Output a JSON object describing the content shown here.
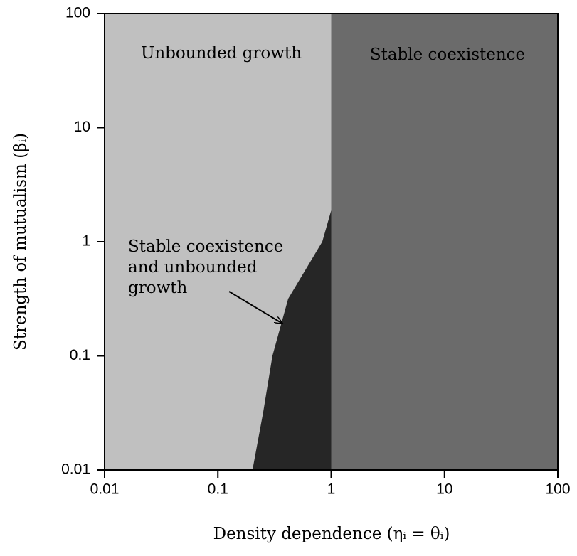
{
  "chart_data": {
    "type": "region",
    "xlabel": "Density dependence (ηᵢ = θᵢ)",
    "ylabel": "Strength of mutualism (βᵢ)",
    "xscale": "log",
    "yscale": "log",
    "xlim": [
      0.01,
      100
    ],
    "ylim": [
      0.01,
      100
    ],
    "xticks": [
      0.01,
      0.1,
      1,
      10,
      100
    ],
    "yticks": [
      0.01,
      0.1,
      1,
      10,
      100
    ],
    "background": {
      "label": "Unbounded growth",
      "color": "#c0c0c0"
    },
    "threshold": {
      "label": "Stable coexistence",
      "color": "#6b6b6b",
      "x": 1
    },
    "mixed": {
      "label": [
        "Stable coexistence",
        "and unbounded",
        "growth"
      ],
      "color": "#262626",
      "x": [
        0.202,
        0.251,
        0.303,
        0.417,
        0.834,
        1
      ],
      "y": [
        0.01,
        0.032,
        0.1,
        0.316,
        1,
        1.88
      ]
    }
  }
}
